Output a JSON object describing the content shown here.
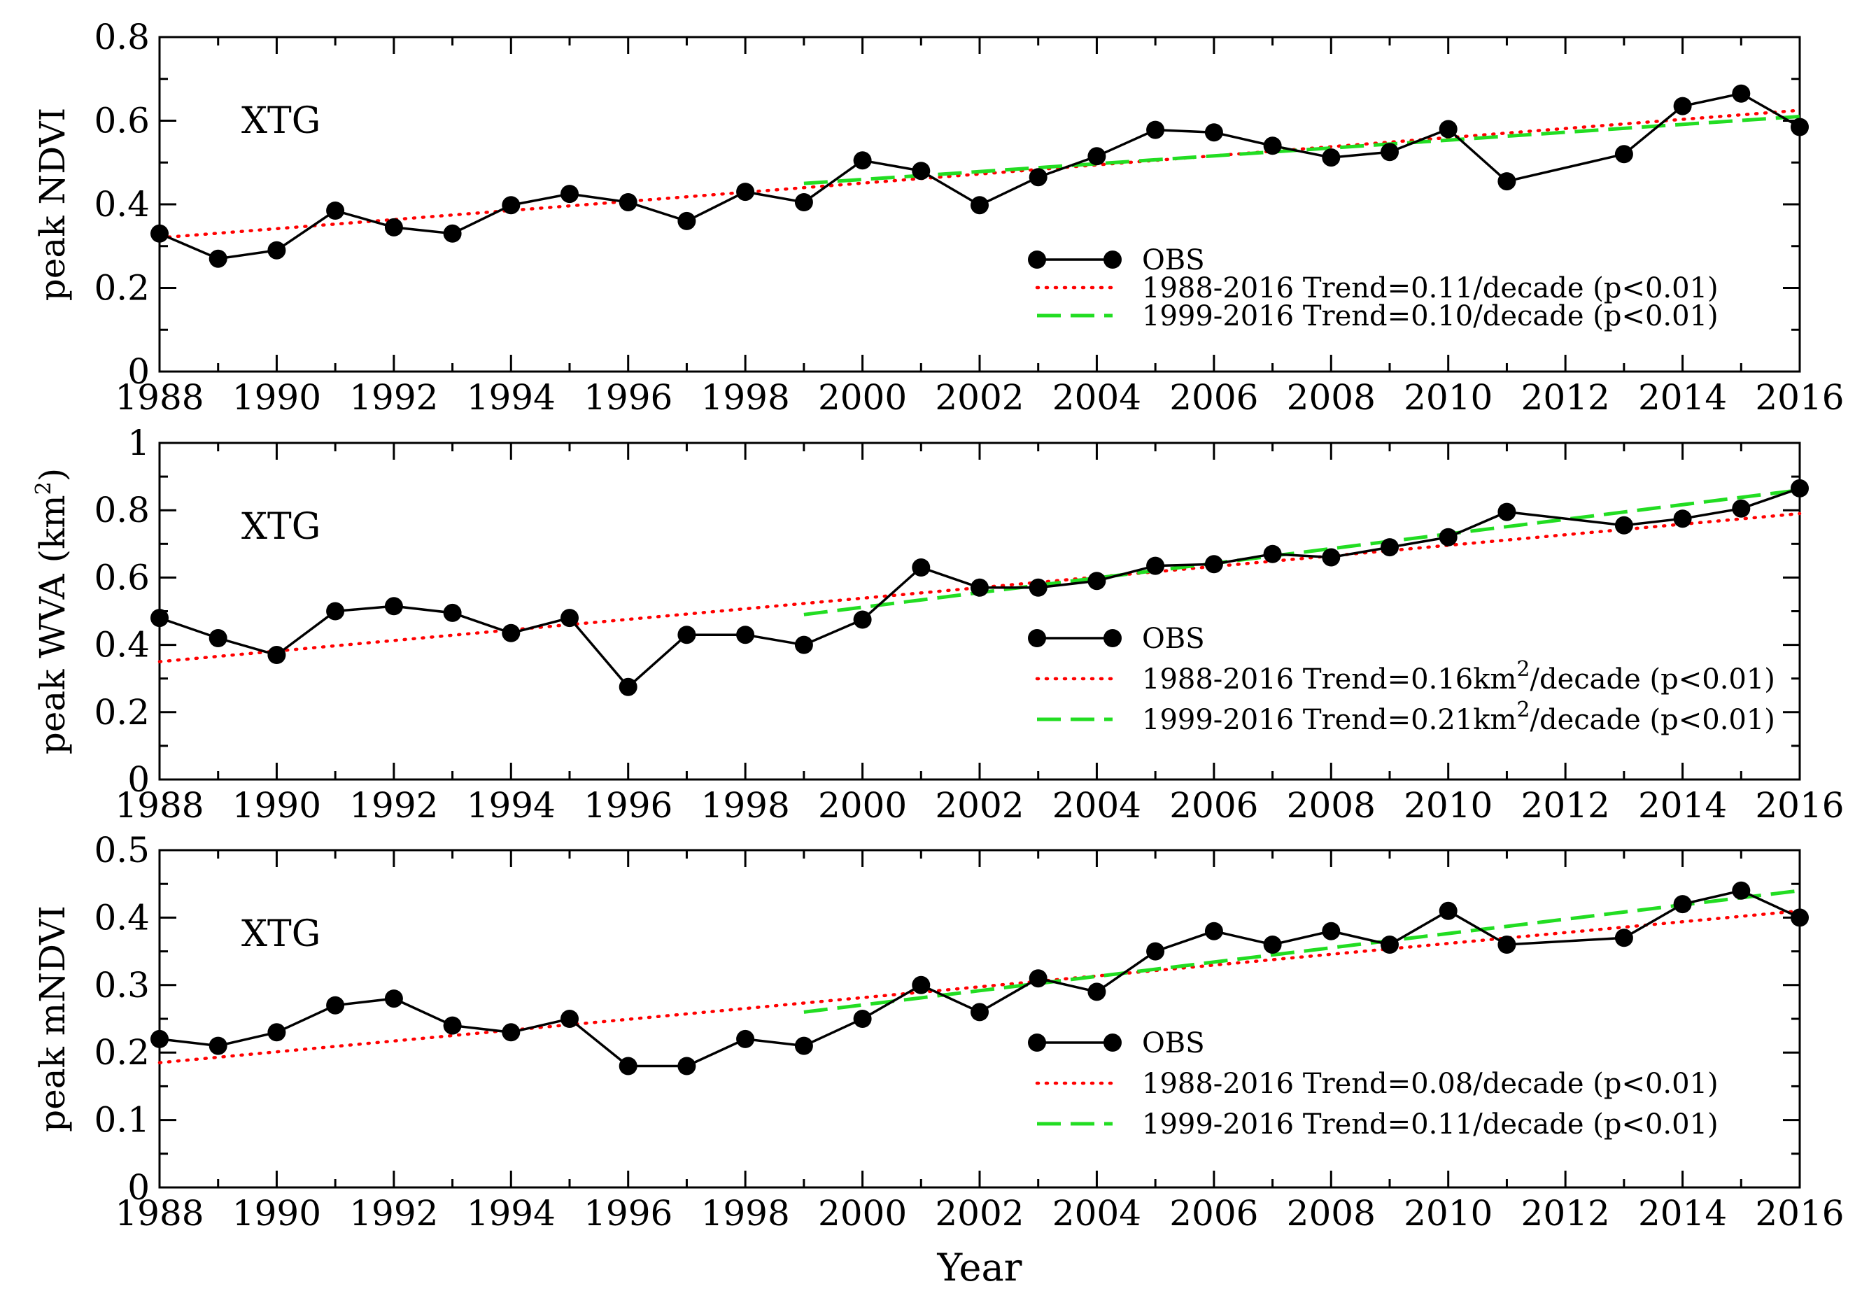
{
  "chart_data": [
    {
      "type": "line",
      "panel_label": "XTG",
      "ylabel": "peak NDVI",
      "ylabel_sup": "",
      "ylabel_tail": "",
      "xlim": [
        1988,
        2016
      ],
      "ylim": [
        0,
        0.8
      ],
      "yticks": [
        "0",
        "0.2",
        "0.4",
        "0.6",
        "0.8"
      ],
      "ytick_values": [
        0,
        0.2,
        0.4,
        0.6,
        0.8
      ],
      "xticks": [
        "1988",
        "1990",
        "1992",
        "1994",
        "1996",
        "1998",
        "2000",
        "2002",
        "2004",
        "2006",
        "2008",
        "2010",
        "2012",
        "2014",
        "2016"
      ],
      "legend_position": "lower-right",
      "series": [
        {
          "name": "OBS",
          "legend_pre": "OBS",
          "legend_sup": "",
          "legend_post": "",
          "style": "line-markers",
          "color": "#000000",
          "x": [
            1988,
            1989,
            1990,
            1991,
            1992,
            1993,
            1994,
            1995,
            1996,
            1997,
            1998,
            1999,
            2000,
            2001,
            2002,
            2003,
            2004,
            2005,
            2006,
            2007,
            2008,
            2009,
            2010,
            2011,
            2013,
            2014,
            2015,
            2016
          ],
          "y": [
            0.33,
            0.27,
            0.29,
            0.385,
            0.345,
            0.33,
            0.398,
            0.425,
            0.405,
            0.36,
            0.43,
            0.405,
            0.505,
            0.48,
            0.398,
            0.465,
            0.515,
            0.578,
            0.572,
            0.54,
            0.512,
            0.525,
            0.58,
            0.455,
            0.52,
            0.635,
            0.665,
            0.585
          ]
        },
        {
          "name": "1988-2016 Trend=0.11/decade (p<0.01)",
          "legend_pre": "1988-2016 Trend=0.11/decade (p<0.01)",
          "legend_sup": "",
          "legend_post": "",
          "style": "dotted",
          "color": "#ff0000",
          "x": [
            1988,
            2016
          ],
          "y": [
            0.32,
            0.625
          ]
        },
        {
          "name": "1999-2016 Trend=0.10/decade (p<0.01)",
          "legend_pre": "1999-2016 Trend=0.10/decade (p<0.01)",
          "legend_sup": "",
          "legend_post": "",
          "style": "dashed",
          "color": "#22dd22",
          "x": [
            1999,
            2016
          ],
          "y": [
            0.45,
            0.61
          ]
        }
      ]
    },
    {
      "type": "line",
      "panel_label": "XTG",
      "ylabel": "peak WVA (km",
      "ylabel_sup": "2",
      "ylabel_tail": ")",
      "xlim": [
        1988,
        2016
      ],
      "ylim": [
        0,
        1
      ],
      "yticks": [
        "0",
        "0.2",
        "0.4",
        "0.6",
        "0.8",
        "1"
      ],
      "ytick_values": [
        0,
        0.2,
        0.4,
        0.6,
        0.8,
        1
      ],
      "xticks": [
        "1988",
        "1990",
        "1992",
        "1994",
        "1996",
        "1998",
        "2000",
        "2002",
        "2004",
        "2006",
        "2008",
        "2010",
        "2012",
        "2014",
        "2016"
      ],
      "legend_position": "lower-right",
      "series": [
        {
          "name": "OBS",
          "legend_pre": "OBS",
          "legend_sup": "",
          "legend_post": "",
          "style": "line-markers",
          "color": "#000000",
          "x": [
            1988,
            1989,
            1990,
            1991,
            1992,
            1993,
            1994,
            1995,
            1996,
            1997,
            1998,
            1999,
            2000,
            2001,
            2002,
            2003,
            2004,
            2005,
            2006,
            2007,
            2008,
            2009,
            2010,
            2011,
            2013,
            2014,
            2015,
            2016
          ],
          "y": [
            0.48,
            0.42,
            0.37,
            0.5,
            0.515,
            0.495,
            0.435,
            0.48,
            0.275,
            0.43,
            0.43,
            0.4,
            0.475,
            0.63,
            0.57,
            0.57,
            0.59,
            0.635,
            0.64,
            0.67,
            0.66,
            0.69,
            0.72,
            0.795,
            0.755,
            0.775,
            0.805,
            0.865
          ]
        },
        {
          "name": "1988-2016 Trend=0.16km2/decade (p<0.01)",
          "legend_pre": "1988-2016 Trend=0.16km",
          "legend_sup": "2",
          "legend_post": "/decade (p<0.01)",
          "style": "dotted",
          "color": "#ff0000",
          "x": [
            1988,
            2016
          ],
          "y": [
            0.35,
            0.79
          ]
        },
        {
          "name": "1999-2016 Trend=0.21km2/decade (p<0.01)",
          "legend_pre": "1999-2016 Trend=0.21km",
          "legend_sup": "2",
          "legend_post": "/decade (p<0.01)",
          "style": "dashed",
          "color": "#22dd22",
          "x": [
            1999,
            2016
          ],
          "y": [
            0.49,
            0.86
          ]
        }
      ]
    },
    {
      "type": "line",
      "panel_label": "XTG",
      "ylabel": "peak mNDVI",
      "ylabel_sup": "",
      "ylabel_tail": "",
      "xlim": [
        1988,
        2016
      ],
      "ylim": [
        0,
        0.5
      ],
      "yticks": [
        "0",
        "0.1",
        "0.2",
        "0.3",
        "0.4",
        "0.5"
      ],
      "ytick_values": [
        0,
        0.1,
        0.2,
        0.3,
        0.4,
        0.5
      ],
      "xticks": [
        "1988",
        "1990",
        "1992",
        "1994",
        "1996",
        "1998",
        "2000",
        "2002",
        "2004",
        "2006",
        "2008",
        "2010",
        "2012",
        "2014",
        "2016"
      ],
      "xlabel": "Year",
      "legend_position": "lower-right",
      "series": [
        {
          "name": "OBS",
          "legend_pre": "OBS",
          "legend_sup": "",
          "legend_post": "",
          "style": "line-markers",
          "color": "#000000",
          "x": [
            1988,
            1989,
            1990,
            1991,
            1992,
            1993,
            1994,
            1995,
            1996,
            1997,
            1998,
            1999,
            2000,
            2001,
            2002,
            2003,
            2004,
            2005,
            2006,
            2007,
            2008,
            2009,
            2010,
            2011,
            2013,
            2014,
            2015,
            2016
          ],
          "y": [
            0.22,
            0.21,
            0.23,
            0.27,
            0.28,
            0.24,
            0.23,
            0.25,
            0.18,
            0.18,
            0.22,
            0.21,
            0.25,
            0.3,
            0.26,
            0.31,
            0.29,
            0.35,
            0.38,
            0.36,
            0.38,
            0.36,
            0.41,
            0.36,
            0.37,
            0.42,
            0.44,
            0.4
          ]
        },
        {
          "name": "1988-2016 Trend=0.08/decade (p<0.01)",
          "legend_pre": "1988-2016 Trend=0.08/decade (p<0.01)",
          "legend_sup": "",
          "legend_post": "",
          "style": "dotted",
          "color": "#ff0000",
          "x": [
            1988,
            2016
          ],
          "y": [
            0.185,
            0.41
          ]
        },
        {
          "name": "1999-2016 Trend=0.11/decade (p<0.01)",
          "legend_pre": "1999-2016 Trend=0.11/decade (p<0.01)",
          "legend_sup": "",
          "legend_post": "",
          "style": "dashed",
          "color": "#22dd22",
          "x": [
            1999,
            2016
          ],
          "y": [
            0.26,
            0.44
          ]
        }
      ]
    }
  ]
}
